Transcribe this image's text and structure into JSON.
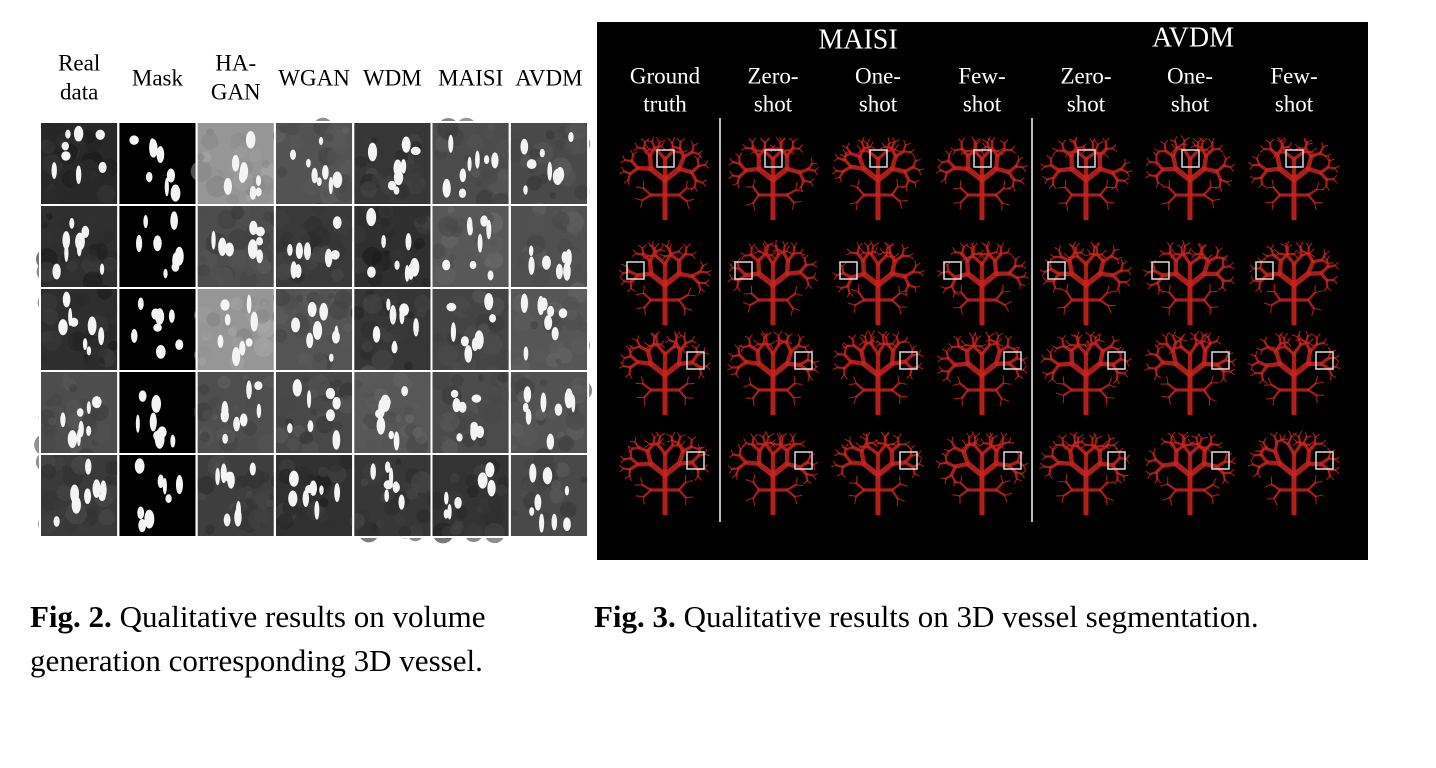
{
  "figure2": {
    "columns": [
      [
        "Real",
        "data"
      ],
      [
        "Mask"
      ],
      [
        "HA-",
        "GAN"
      ],
      [
        "WGAN"
      ],
      [
        "WDM"
      ],
      [
        "MAISI"
      ],
      [
        "AVDM"
      ]
    ],
    "caption": {
      "label": "Fig. 2.",
      "text": "Qualitative results on volume generation corresponding 3D vessel."
    }
  },
  "figure3": {
    "groups": [
      "MAISI",
      "AVDM"
    ],
    "columns": [
      [
        "Ground",
        "truth"
      ],
      [
        "Zero-",
        "shot"
      ],
      [
        "One-",
        "shot"
      ],
      [
        "Few-",
        "shot"
      ],
      [
        "Zero-",
        "shot"
      ],
      [
        "One-",
        "shot"
      ],
      [
        "Few-",
        "shot"
      ]
    ],
    "caption": {
      "label": "Fig. 3.",
      "text": "Qualitative results on 3D vessel segmentation."
    }
  }
}
